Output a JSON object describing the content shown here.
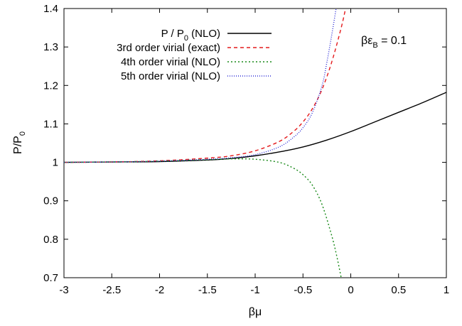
{
  "chart_data": {
    "type": "line",
    "xlabel": "βμ",
    "ylabel": {
      "base": "P/P",
      "sub": "0"
    },
    "xlim": [
      -3,
      1
    ],
    "ylim": [
      0.7,
      1.4
    ],
    "xticks": [
      -3,
      -2.5,
      -2,
      -1.5,
      -1,
      -0.5,
      0,
      0.5,
      1
    ],
    "yticks": [
      0.7,
      0.8,
      0.9,
      1,
      1.1,
      1.2,
      1.3,
      1.4
    ],
    "grid": false,
    "legend_position": "top-left",
    "annotation": {
      "base": "βε",
      "sub": "B",
      "suffix": " = 0.1"
    },
    "series": [
      {
        "name": "P / P0 (NLO)",
        "label_base": "P / P",
        "label_sub": "0",
        "label_suffix": " (NLO)",
        "color": "#000000",
        "dash": "",
        "x": [
          -3,
          -2.5,
          -2,
          -1.5,
          -1.25,
          -1,
          -0.75,
          -0.5,
          -0.25,
          0,
          0.25,
          0.5,
          0.75,
          1
        ],
        "y": [
          1.0,
          1.001,
          1.002,
          1.006,
          1.01,
          1.017,
          1.027,
          1.04,
          1.058,
          1.08,
          1.105,
          1.13,
          1.155,
          1.182
        ]
      },
      {
        "name": "3rd order virial (exact)",
        "color": "#e41a1c",
        "dash": "5,4",
        "x": [
          -3,
          -2.5,
          -2,
          -1.5,
          -1.25,
          -1,
          -0.75,
          -0.6,
          -0.5,
          -0.4,
          -0.3,
          -0.2,
          -0.1,
          -0.05
        ],
        "y": [
          1.0,
          1.001,
          1.004,
          1.011,
          1.017,
          1.03,
          1.054,
          1.08,
          1.105,
          1.14,
          1.19,
          1.26,
          1.35,
          1.405
        ]
      },
      {
        "name": "4th order virial (NLO)",
        "color": "#1a8a1a",
        "dash": "2,3",
        "x": [
          -3,
          -2.5,
          -2,
          -1.5,
          -1.25,
          -1,
          -0.75,
          -0.6,
          -0.5,
          -0.4,
          -0.3,
          -0.2,
          -0.15,
          -0.1
        ],
        "y": [
          1.0,
          1.001,
          1.003,
          1.007,
          1.009,
          1.008,
          1.0,
          0.985,
          0.968,
          0.94,
          0.89,
          0.81,
          0.76,
          0.7
        ]
      },
      {
        "name": "5th order virial (NLO)",
        "color": "#2c2cd6",
        "dash": "1,2",
        "x": [
          -3,
          -2.5,
          -2,
          -1.5,
          -1.25,
          -1,
          -0.75,
          -0.6,
          -0.5,
          -0.4,
          -0.3,
          -0.25,
          -0.2,
          -0.15
        ],
        "y": [
          1.0,
          1.001,
          1.003,
          1.008,
          1.012,
          1.02,
          1.04,
          1.065,
          1.09,
          1.13,
          1.2,
          1.26,
          1.33,
          1.405
        ]
      }
    ]
  }
}
